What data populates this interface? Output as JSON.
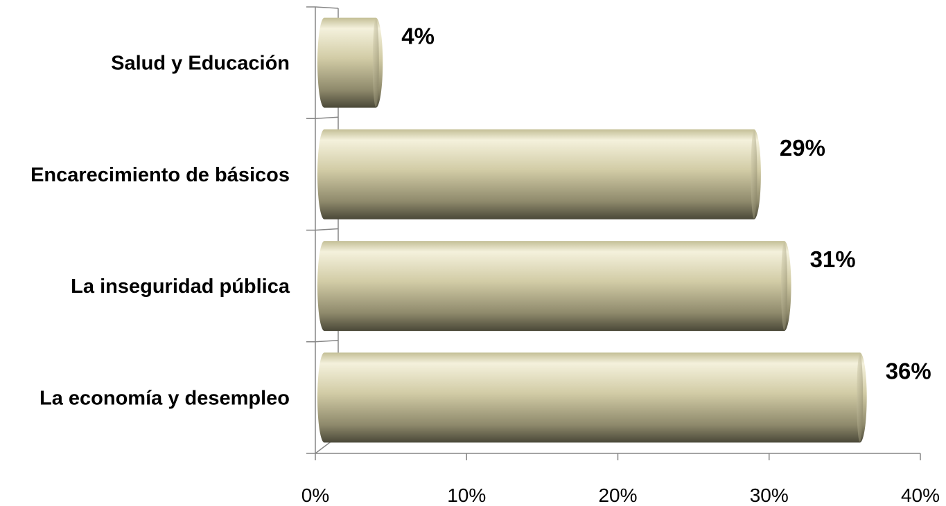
{
  "chart_data": {
    "type": "bar",
    "orientation": "horizontal",
    "style": "3d-cylinder",
    "categories": [
      "La economía y desempleo",
      "La inseguridad pública",
      "Encarecimiento de básicos",
      "Salud y Educación"
    ],
    "values": [
      36,
      31,
      29,
      4
    ],
    "data_labels": [
      "36%",
      "31%",
      "29%",
      "4%"
    ],
    "title": "",
    "xlabel": "",
    "ylabel": "",
    "xlim": [
      0,
      40
    ],
    "x_ticks": [
      0,
      10,
      20,
      30,
      40
    ],
    "x_tick_labels": [
      "0%",
      "10%",
      "20%",
      "30%",
      "40%"
    ],
    "value_unit": "%",
    "grid": false,
    "legend": "none",
    "colors": {
      "bar_light": "#f4f1dc",
      "bar_mid": "#c9c39a",
      "bar_dark": "#4a4838",
      "axis": "#868686"
    }
  }
}
